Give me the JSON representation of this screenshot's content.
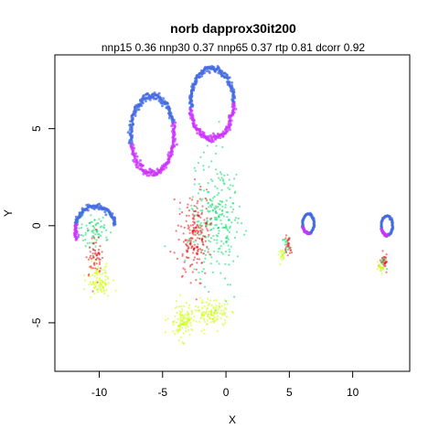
{
  "chart_data": {
    "type": "scatter",
    "title": "norb dapprox30it200",
    "subtitle": "nnp15 0.36 nnp30 0.37 nnp65 0.37 rtp 0.81 dcorr 0.92",
    "xlabel": "X",
    "ylabel": "Y",
    "xlim": [
      -13.5,
      14.5
    ],
    "ylim": [
      -7.5,
      8.8
    ],
    "xticks": [
      -10,
      -5,
      0,
      5,
      10
    ],
    "yticks": [
      -5,
      0,
      5
    ],
    "grid": false,
    "legend": "none",
    "series": [
      {
        "color": "#4169e1",
        "rings": [
          {
            "cx": -5.8,
            "cy": 4.7,
            "rx": 1.7,
            "ry": 2.0,
            "arc": [
              0.3,
              3.4
            ]
          },
          {
            "cx": -1.1,
            "cy": 6.3,
            "rx": 1.7,
            "ry": 1.8,
            "arc": [
              0.0,
              3.3
            ]
          },
          {
            "cx": -10.3,
            "cy": -0.2,
            "rx": 1.6,
            "ry": 1.2,
            "arc": [
              0.2,
              2.9
            ]
          },
          {
            "cx": 6.5,
            "cy": 0.1,
            "rx": 0.45,
            "ry": 0.5,
            "arc": [
              0,
              6.28
            ]
          },
          {
            "cx": 12.7,
            "cy": 0.0,
            "rx": 0.45,
            "ry": 0.5,
            "arc": [
              0,
              6.28
            ]
          }
        ]
      },
      {
        "color": "#cc33ff",
        "rings": [
          {
            "cx": -5.8,
            "cy": 4.7,
            "rx": 1.7,
            "ry": 2.0,
            "arc": [
              3.4,
              6.6
            ]
          },
          {
            "cx": -1.1,
            "cy": 6.3,
            "rx": 1.7,
            "ry": 1.8,
            "arc": [
              3.3,
              6.3
            ]
          },
          {
            "cx": -10.3,
            "cy": -0.2,
            "rx": 1.6,
            "ry": 1.2,
            "arc": [
              2.9,
              3.6
            ]
          },
          {
            "cx": 6.5,
            "cy": 0.1,
            "rx": 0.45,
            "ry": 0.5,
            "arc": [
              3.5,
              5.0
            ]
          },
          {
            "cx": 12.7,
            "cy": 0.0,
            "rx": 0.45,
            "ry": 0.5,
            "arc": [
              3.5,
              5.0
            ]
          }
        ]
      },
      {
        "color": "#00dd66",
        "clouds": [
          {
            "cx": -0.8,
            "cy": 0.3,
            "sx": 1.0,
            "sy": 1.6,
            "n": 260
          },
          {
            "cx": -10.5,
            "cy": -0.4,
            "sx": 0.6,
            "sy": 0.4,
            "n": 70
          },
          {
            "cx": 4.8,
            "cy": -1.0,
            "sx": 0.15,
            "sy": 0.2,
            "n": 15
          },
          {
            "cx": 12.4,
            "cy": -1.9,
            "sx": 0.15,
            "sy": 0.15,
            "n": 12
          }
        ]
      },
      {
        "color": "#ee1111",
        "clouds": [
          {
            "cx": -2.5,
            "cy": -0.5,
            "sx": 0.6,
            "sy": 1.1,
            "n": 200
          },
          {
            "cx": -10.3,
            "cy": -1.5,
            "sx": 0.25,
            "sy": 0.5,
            "n": 60
          },
          {
            "cx": 4.9,
            "cy": -1.0,
            "sx": 0.12,
            "sy": 0.3,
            "n": 25
          },
          {
            "cx": 12.5,
            "cy": -1.8,
            "sx": 0.15,
            "sy": 0.25,
            "n": 25
          }
        ]
      },
      {
        "color": "#ccff00",
        "clouds": [
          {
            "cx": -10.0,
            "cy": -2.9,
            "sx": 0.5,
            "sy": 0.4,
            "n": 90
          },
          {
            "cx": -3.4,
            "cy": -4.9,
            "sx": 0.55,
            "sy": 0.45,
            "n": 120
          },
          {
            "cx": -1.0,
            "cy": -4.5,
            "sx": 0.6,
            "sy": 0.35,
            "n": 110
          },
          {
            "cx": 4.4,
            "cy": -1.6,
            "sx": 0.12,
            "sy": 0.15,
            "n": 20
          },
          {
            "cx": 12.2,
            "cy": -2.2,
            "sx": 0.15,
            "sy": 0.12,
            "n": 20
          }
        ]
      }
    ]
  }
}
